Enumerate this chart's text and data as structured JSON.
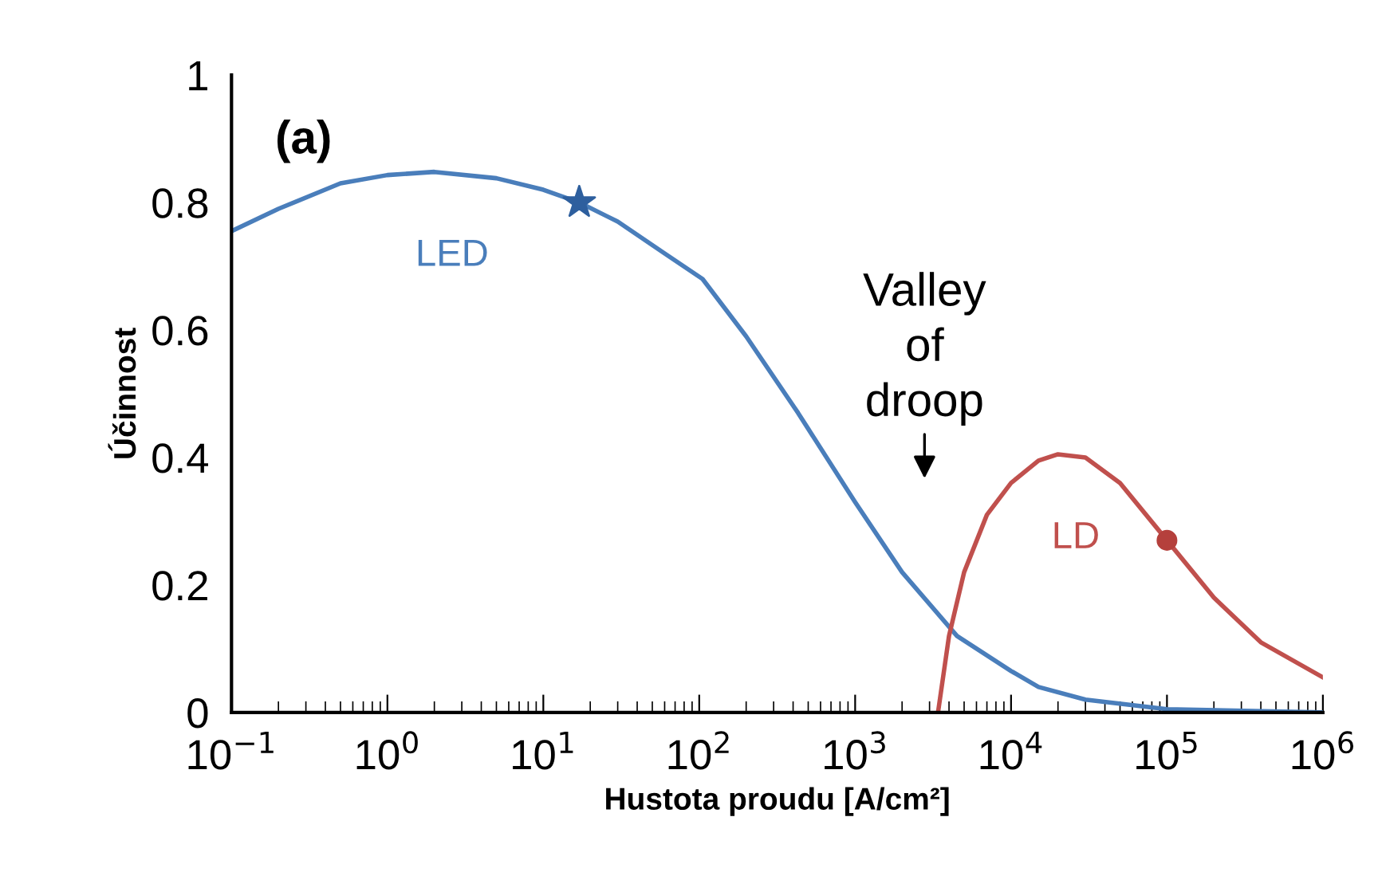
{
  "chart_data": {
    "type": "line",
    "xlabel": "Hustota proudu [A/cm²]",
    "ylabel": "Účinnost",
    "log": "x",
    "xlim": [
      0.1,
      1000000
    ],
    "xticks": [
      {
        "value": 0.1,
        "label": "10$^{−1}$"
      },
      {
        "value": 1,
        "label": "10$^{0}$"
      },
      {
        "value": 10,
        "label": "10$^{1}$"
      },
      {
        "value": 100,
        "label": "10$^{2}$"
      },
      {
        "value": 1000,
        "label": "10$^{3}$"
      },
      {
        "value": 10000,
        "label": "10$^{4}$"
      },
      {
        "value": 100000,
        "label": "10$^{5}$"
      },
      {
        "value": 1000000,
        "label": "10$^{6}$"
      }
    ],
    "ylim": [
      0,
      1
    ],
    "yticks": [
      0,
      0.2,
      0.4,
      0.6,
      0.8,
      1
    ],
    "grid": false,
    "annotations": [
      "(a)",
      "Valley\nof\ndroop"
    ],
    "series": [
      {
        "name": "LED",
        "color": "#4a7ebb",
        "x": [
          0.1,
          0.2,
          0.5,
          1,
          2,
          5,
          10,
          17,
          30,
          60,
          105,
          200,
          430,
          1000,
          2000,
          4500,
          10000,
          15000,
          30000,
          100000,
          1000000
        ],
        "values": [
          0.755,
          0.79,
          0.83,
          0.843,
          0.848,
          0.838,
          0.82,
          0.8,
          0.77,
          0.72,
          0.68,
          0.59,
          0.47,
          0.33,
          0.22,
          0.12,
          0.065,
          0.04,
          0.02,
          0.005,
          0
        ]
      },
      {
        "name": "LD",
        "color": "#c0504d",
        "x": [
          3400,
          4000,
          5000,
          7000,
          10000,
          15000,
          20000,
          30000,
          50000,
          100000,
          200000,
          400000,
          1000000
        ],
        "values": [
          0,
          0.12,
          0.22,
          0.31,
          0.36,
          0.395,
          0.405,
          0.4,
          0.36,
          0.27,
          0.18,
          0.11,
          0.055
        ]
      },
      {
        "color": "#2e5f9e",
        "type": "scatter",
        "marker": "star",
        "x": [
          17
        ],
        "values": [
          0.8
        ]
      },
      {
        "color": "#b5403c",
        "type": "scatter",
        "marker": "circle",
        "x": [
          100000
        ],
        "values": [
          0.27
        ]
      }
    ]
  }
}
